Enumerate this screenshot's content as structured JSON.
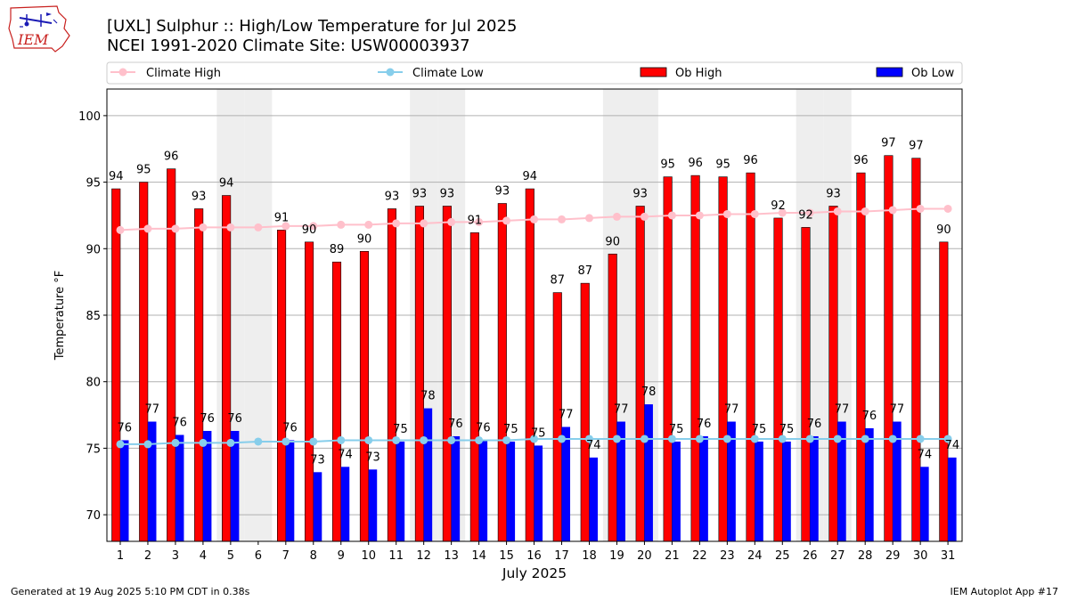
{
  "header": {
    "logo_text": "IEM",
    "title_line1": "[UXL] Sulphur :: High/Low Temperature for Jul 2025",
    "title_line2": "NCEI 1991-2020 Climate Site: USW00003937"
  },
  "footer": {
    "left": "Generated at 19 Aug 2025 5:10 PM CDT in 0.38s",
    "right": "IEM Autoplot App #17"
  },
  "chart_data": {
    "type": "bar",
    "xlabel": "July 2025",
    "ylabel": "Temperature °F",
    "ylim": [
      68,
      102
    ],
    "yticks": [
      70,
      75,
      80,
      85,
      90,
      95,
      100
    ],
    "grid": true,
    "legend": "top",
    "shaded_days": [
      5,
      6,
      12,
      13,
      19,
      20,
      26,
      27
    ],
    "categories": [
      "1",
      "2",
      "3",
      "4",
      "5",
      "6",
      "7",
      "8",
      "9",
      "10",
      "11",
      "12",
      "13",
      "14",
      "15",
      "16",
      "17",
      "18",
      "19",
      "20",
      "21",
      "22",
      "23",
      "24",
      "25",
      "26",
      "27",
      "28",
      "29",
      "30",
      "31"
    ],
    "series": [
      {
        "name": "Climate High",
        "kind": "line",
        "color": "#ffc0cb",
        "values": [
          91.4,
          91.5,
          91.5,
          91.6,
          91.6,
          91.6,
          91.7,
          91.7,
          91.8,
          91.8,
          91.9,
          91.9,
          92.0,
          92.0,
          92.1,
          92.2,
          92.2,
          92.3,
          92.4,
          92.4,
          92.5,
          92.5,
          92.6,
          92.6,
          92.7,
          92.7,
          92.8,
          92.8,
          92.9,
          93.0,
          93.0
        ]
      },
      {
        "name": "Climate Low",
        "kind": "line",
        "color": "#87ceeb",
        "values": [
          75.3,
          75.3,
          75.4,
          75.4,
          75.4,
          75.5,
          75.5,
          75.5,
          75.6,
          75.6,
          75.6,
          75.6,
          75.6,
          75.6,
          75.6,
          75.7,
          75.7,
          75.7,
          75.7,
          75.7,
          75.7,
          75.7,
          75.7,
          75.7,
          75.7,
          75.7,
          75.7,
          75.7,
          75.7,
          75.7,
          75.7
        ]
      },
      {
        "name": "Ob High",
        "kind": "bar",
        "color": "#ff0000",
        "values": [
          94.5,
          95.0,
          96.0,
          93.0,
          94.0,
          null,
          91.4,
          90.5,
          89.0,
          89.8,
          93.0,
          93.2,
          93.2,
          91.2,
          93.4,
          94.5,
          86.7,
          87.4,
          89.6,
          93.2,
          95.4,
          95.5,
          95.4,
          95.7,
          92.3,
          91.6,
          93.2,
          95.7,
          97.0,
          96.8,
          90.5
        ],
        "labels": [
          "94",
          "95",
          "96",
          "93",
          "94",
          "",
          "91",
          "90",
          "89",
          "90",
          "93",
          "93",
          "93",
          "91",
          "93",
          "94",
          "87",
          "87",
          "90",
          "93",
          "95",
          "96",
          "95",
          "96",
          "92",
          "92",
          "93",
          "96",
          "97",
          "97",
          "90"
        ]
      },
      {
        "name": "Ob Low",
        "kind": "bar",
        "color": "#0000ff",
        "values": [
          75.6,
          77.0,
          76.0,
          76.3,
          76.3,
          null,
          75.6,
          73.2,
          73.6,
          73.4,
          75.5,
          78.0,
          75.9,
          75.6,
          75.5,
          75.2,
          76.6,
          74.3,
          77.0,
          78.3,
          75.5,
          75.9,
          77.0,
          75.5,
          75.5,
          75.9,
          77.0,
          76.5,
          77.0,
          73.6,
          74.3
        ],
        "labels": [
          "76",
          "77",
          "76",
          "76",
          "76",
          "",
          "76",
          "73",
          "74",
          "73",
          "75",
          "78",
          "76",
          "76",
          "75",
          "75",
          "77",
          "74",
          "77",
          "78",
          "75",
          "76",
          "77",
          "75",
          "75",
          "76",
          "77",
          "76",
          "77",
          "74",
          "74"
        ]
      }
    ]
  }
}
